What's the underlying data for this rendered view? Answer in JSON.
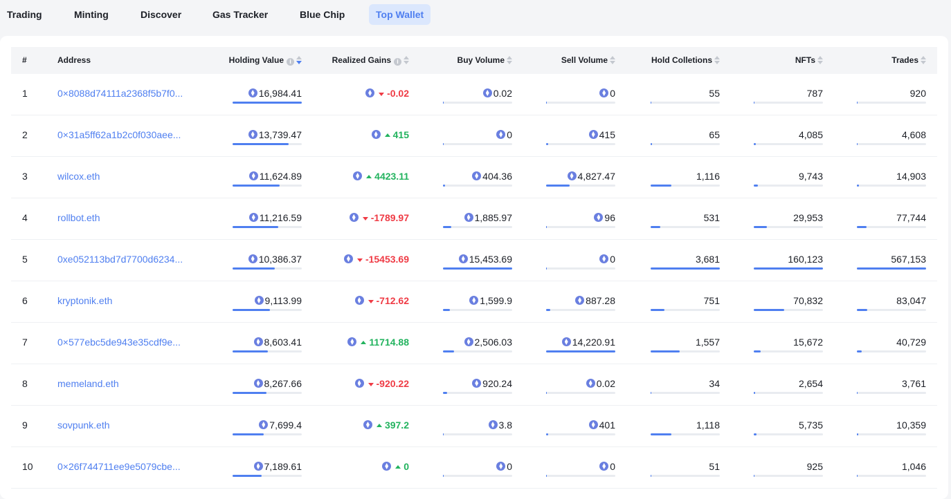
{
  "tabs": [
    {
      "label": "Trading"
    },
    {
      "label": "Minting"
    },
    {
      "label": "Discover"
    },
    {
      "label": "Gas Tracker"
    },
    {
      "label": "Blue Chip"
    },
    {
      "label": "Top Wallet",
      "active": true
    }
  ],
  "columns": {
    "rank": "#",
    "address": "Address",
    "holding": "Holding Value",
    "gains": "Realized Gains",
    "buy": "Buy Volume",
    "sell": "Sell Volume",
    "hold": "Hold Colletions",
    "nfts": "NFTs",
    "trades": "Trades"
  },
  "sort": {
    "column": "holding",
    "direction": "desc"
  },
  "colors": {
    "accent": "#4f7ff0",
    "positive": "#22b35e",
    "negative": "#ef3b45"
  },
  "rows": [
    {
      "rank": "1",
      "address": "0×8088d74111a2368f5b7f0...",
      "holding": "16,984.41",
      "gains": "-0.02",
      "trend": "down",
      "buy": "0.02",
      "sell": "0",
      "hold": "55",
      "nfts": "787",
      "trades": "920"
    },
    {
      "rank": "2",
      "address": "0×31a5ff62a1b2c0f030aee...",
      "holding": "13,739.47",
      "gains": "415",
      "trend": "up",
      "buy": "0",
      "sell": "415",
      "hold": "65",
      "nfts": "4,085",
      "trades": "4,608"
    },
    {
      "rank": "3",
      "address": "wilcox.eth",
      "holding": "11,624.89",
      "gains": "4423.11",
      "trend": "up",
      "buy": "404.36",
      "sell": "4,827.47",
      "hold": "1,116",
      "nfts": "9,743",
      "trades": "14,903"
    },
    {
      "rank": "4",
      "address": "rollbot.eth",
      "holding": "11,216.59",
      "gains": "-1789.97",
      "trend": "down",
      "buy": "1,885.97",
      "sell": "96",
      "hold": "531",
      "nfts": "29,953",
      "trades": "77,744"
    },
    {
      "rank": "5",
      "address": "0xe052113bd7d7700d6234...",
      "holding": "10,386.37",
      "gains": "-15453.69",
      "trend": "down",
      "buy": "15,453.69",
      "sell": "0",
      "hold": "3,681",
      "nfts": "160,123",
      "trades": "567,153"
    },
    {
      "rank": "6",
      "address": "kryptonik.eth",
      "holding": "9,113.99",
      "gains": "-712.62",
      "trend": "down",
      "buy": "1,599.9",
      "sell": "887.28",
      "hold": "751",
      "nfts": "70,832",
      "trades": "83,047"
    },
    {
      "rank": "7",
      "address": "0×577ebc5de943e35cdf9e...",
      "holding": "8,603.41",
      "gains": "11714.88",
      "trend": "up",
      "buy": "2,506.03",
      "sell": "14,220.91",
      "hold": "1,557",
      "nfts": "15,672",
      "trades": "40,729"
    },
    {
      "rank": "8",
      "address": "memeland.eth",
      "holding": "8,267.66",
      "gains": "-920.22",
      "trend": "down",
      "buy": "920.24",
      "sell": "0.02",
      "hold": "34",
      "nfts": "2,654",
      "trades": "3,761"
    },
    {
      "rank": "9",
      "address": "sovpunk.eth",
      "holding": "7,699.4",
      "gains": "397.2",
      "trend": "up",
      "buy": "3.8",
      "sell": "401",
      "hold": "1,118",
      "nfts": "5,735",
      "trades": "10,359"
    },
    {
      "rank": "10",
      "address": "0×26f744711ee9e5079cbe...",
      "holding": "7,189.61",
      "gains": "0",
      "trend": "up",
      "buy": "0",
      "sell": "0",
      "hold": "51",
      "nfts": "925",
      "trades": "1,046"
    }
  ]
}
